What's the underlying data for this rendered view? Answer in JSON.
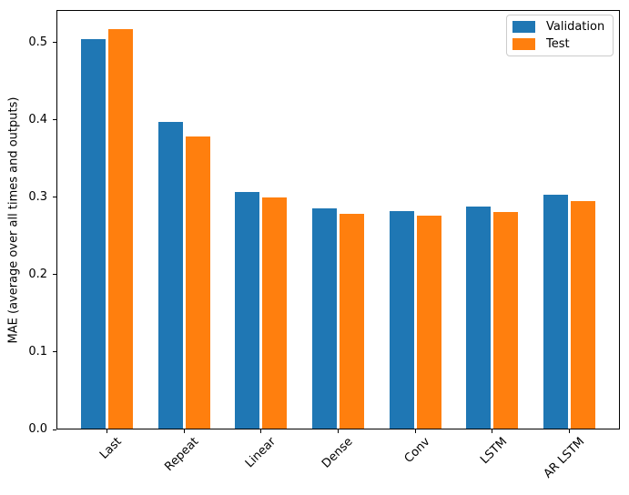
{
  "chart_data": {
    "type": "bar",
    "title": "",
    "xlabel": "",
    "ylabel": "MAE (average over all times and outputs)",
    "categories": [
      "Last",
      "Repeat",
      "Linear",
      "Dense",
      "Conv",
      "LSTM",
      "AR LSTM"
    ],
    "series": [
      {
        "name": "Validation",
        "color": "#1f77b4",
        "values": [
          0.503,
          0.396,
          0.306,
          0.284,
          0.281,
          0.287,
          0.302
        ]
      },
      {
        "name": "Test",
        "color": "#ff7f0e",
        "values": [
          0.516,
          0.377,
          0.299,
          0.277,
          0.275,
          0.28,
          0.294
        ]
      }
    ],
    "ylim": [
      0,
      0.542
    ],
    "yticks": [
      0.0,
      0.1,
      0.2,
      0.3,
      0.4,
      0.5
    ],
    "grid": false,
    "legend_position": "upper right",
    "xtick_rotation_deg": 45,
    "axis_color": "#000000",
    "background_color": "#ffffff"
  }
}
